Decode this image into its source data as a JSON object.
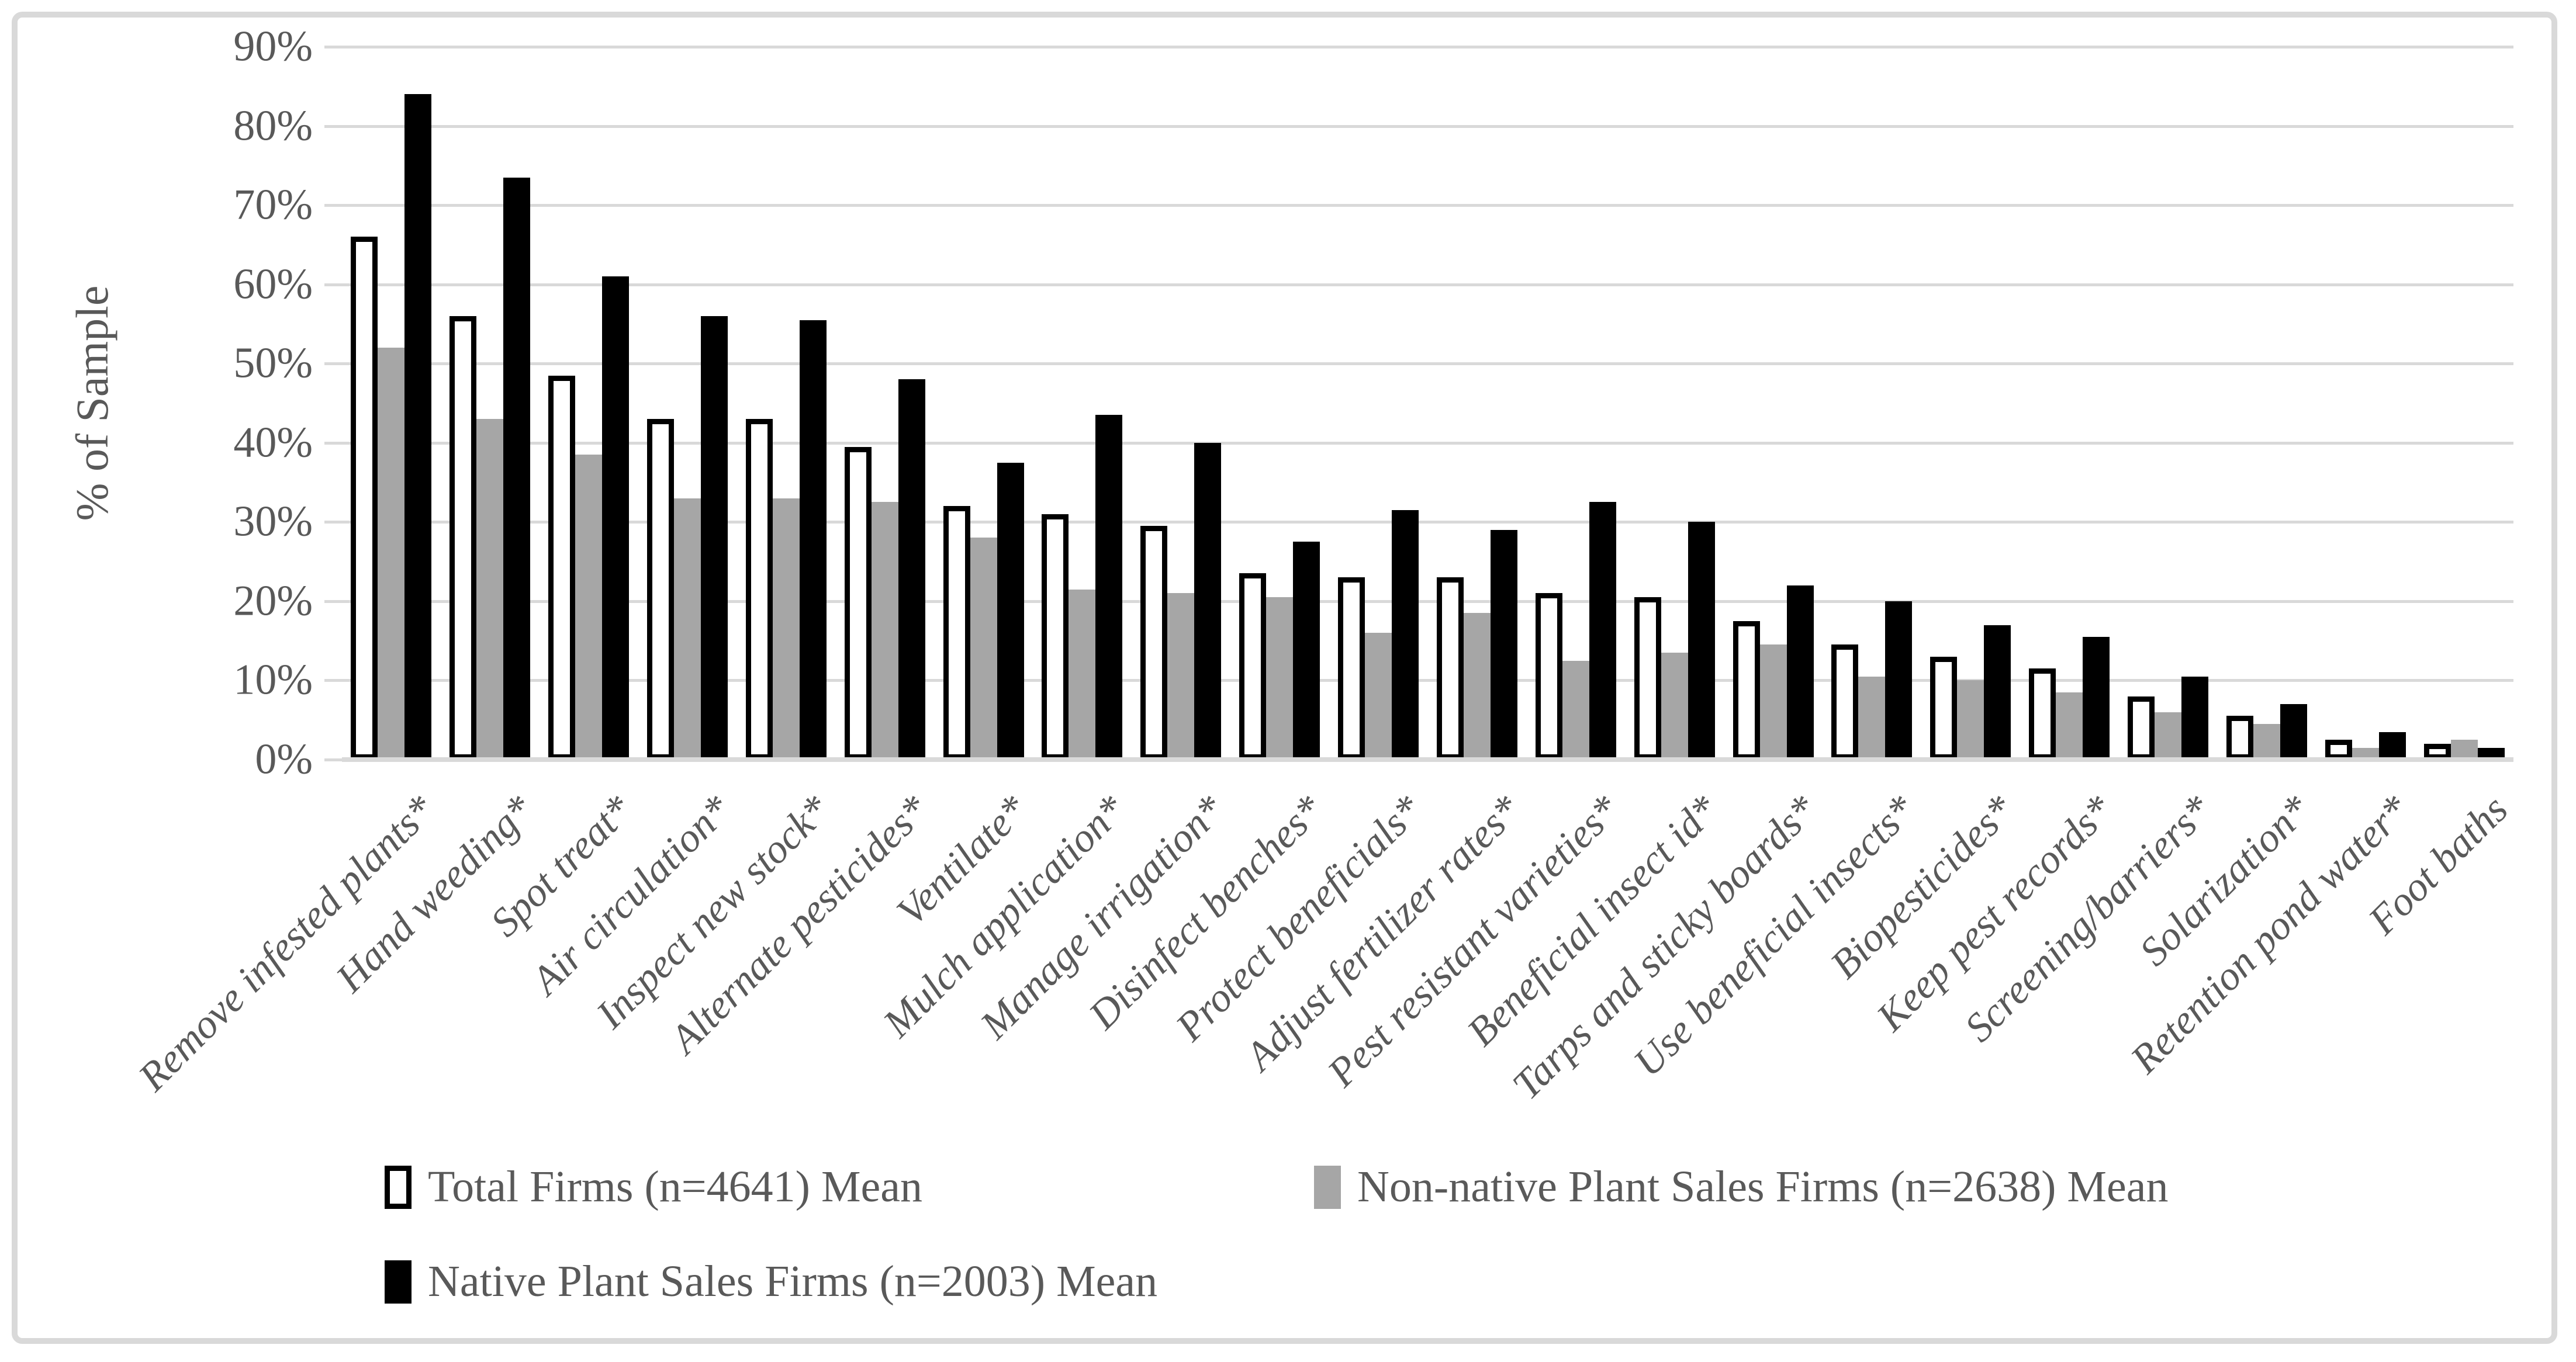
{
  "figure": {
    "kind": "grouped-bar-chart-figure",
    "background": "#ffffff",
    "border_color": "#d9d9d9"
  },
  "chart_data": {
    "type": "bar",
    "title": "",
    "xlabel": "",
    "ylabel": "% of Sample",
    "ylim": [
      0,
      90
    ],
    "grid": true,
    "legend_position": "bottom",
    "y_ticks": [
      0,
      10,
      20,
      30,
      40,
      50,
      60,
      70,
      80,
      90
    ],
    "y_tick_labels": [
      "0%",
      "10%",
      "20%",
      "30%",
      "40%",
      "50%",
      "60%",
      "70%",
      "80%",
      "90%"
    ],
    "categories": [
      "Remove infested plants*",
      "Hand weeding*",
      "Spot treat*",
      "Air circulation*",
      "Inspect new stock*",
      "Alternate pesticides*",
      "Ventilate*",
      "Mulch application*",
      "Manage irrigation*",
      "Disinfect benches*",
      "Protect beneficials*",
      "Adjust fertilizer rates*",
      "Pest resistant varieties*",
      "Beneficial insect id*",
      "Tarps and sticky boards*",
      "Use beneficial insects*",
      "Biopesticides*",
      "Keep pest records*",
      "Screening/barriers*",
      "Solarization*",
      "Retention pond water*",
      "Foot baths"
    ],
    "series": [
      {
        "name": "Total Firms (n=4641) Mean",
        "style": "white-outlined",
        "values": [
          66,
          56,
          48.5,
          43,
          43,
          39.5,
          32,
          31,
          29.5,
          23.5,
          23,
          23,
          21,
          20.5,
          17.5,
          14.5,
          13,
          11.5,
          8,
          5.5,
          2.5,
          2
        ]
      },
      {
        "name": "Non-native Plant Sales Firms (n=2638) Mean",
        "style": "gray-solid",
        "values": [
          52,
          43,
          38.5,
          33,
          33,
          32.5,
          28,
          21.5,
          21,
          20.5,
          16,
          18.5,
          12.5,
          13.5,
          14.5,
          10.5,
          10,
          8.5,
          6,
          4.5,
          1.5,
          2.5
        ]
      },
      {
        "name": "Native Plant Sales Firms (n=2003) Mean",
        "style": "black-solid",
        "values": [
          84,
          73.5,
          61,
          56,
          55.5,
          48,
          37.5,
          43.5,
          40,
          27.5,
          31.5,
          29,
          32.5,
          30,
          22,
          20,
          17,
          15.5,
          10.5,
          7,
          3.5,
          1.5
        ]
      }
    ],
    "colors": {
      "total_fill": "#ffffff",
      "total_border": "#000000",
      "nonnative_fill": "#a6a6a6",
      "native_fill": "#000000",
      "gridline": "#d9d9d9",
      "text": "#595959",
      "figure_border": "#d9d9d9"
    }
  }
}
